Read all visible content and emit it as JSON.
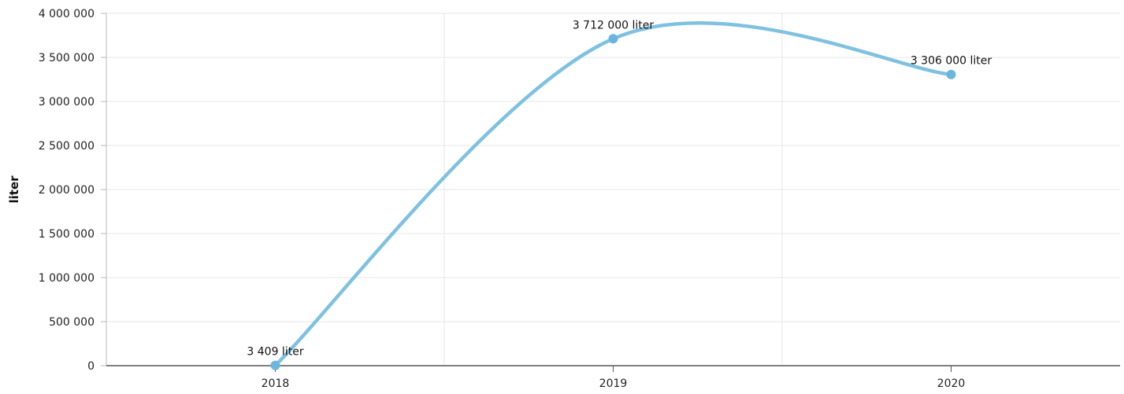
{
  "chart_data": {
    "type": "line",
    "title": "",
    "xlabel": "",
    "ylabel": "liter",
    "categories": [
      "2018",
      "2019",
      "2020"
    ],
    "series": [
      {
        "values": [
          3409,
          3712000,
          3306000
        ],
        "data_labels": [
          "3 409 liter",
          "3 712 000 liter",
          "3 306 000 liter"
        ],
        "color": "#7fc1e0",
        "marker_color": "#6bb5de"
      }
    ],
    "ylim": [
      0,
      4000000
    ],
    "y_ticks": [
      0,
      500000,
      1000000,
      1500000,
      2000000,
      2500000,
      3000000,
      3500000,
      4000000
    ],
    "y_tick_labels": [
      "0",
      "500 000",
      "1 000 000",
      "1 500 000",
      "2 000 000",
      "2 500 000",
      "3 000 000",
      "3 500 000",
      "4 000 000"
    ],
    "grid": true,
    "smooth": true,
    "legend": "none"
  }
}
